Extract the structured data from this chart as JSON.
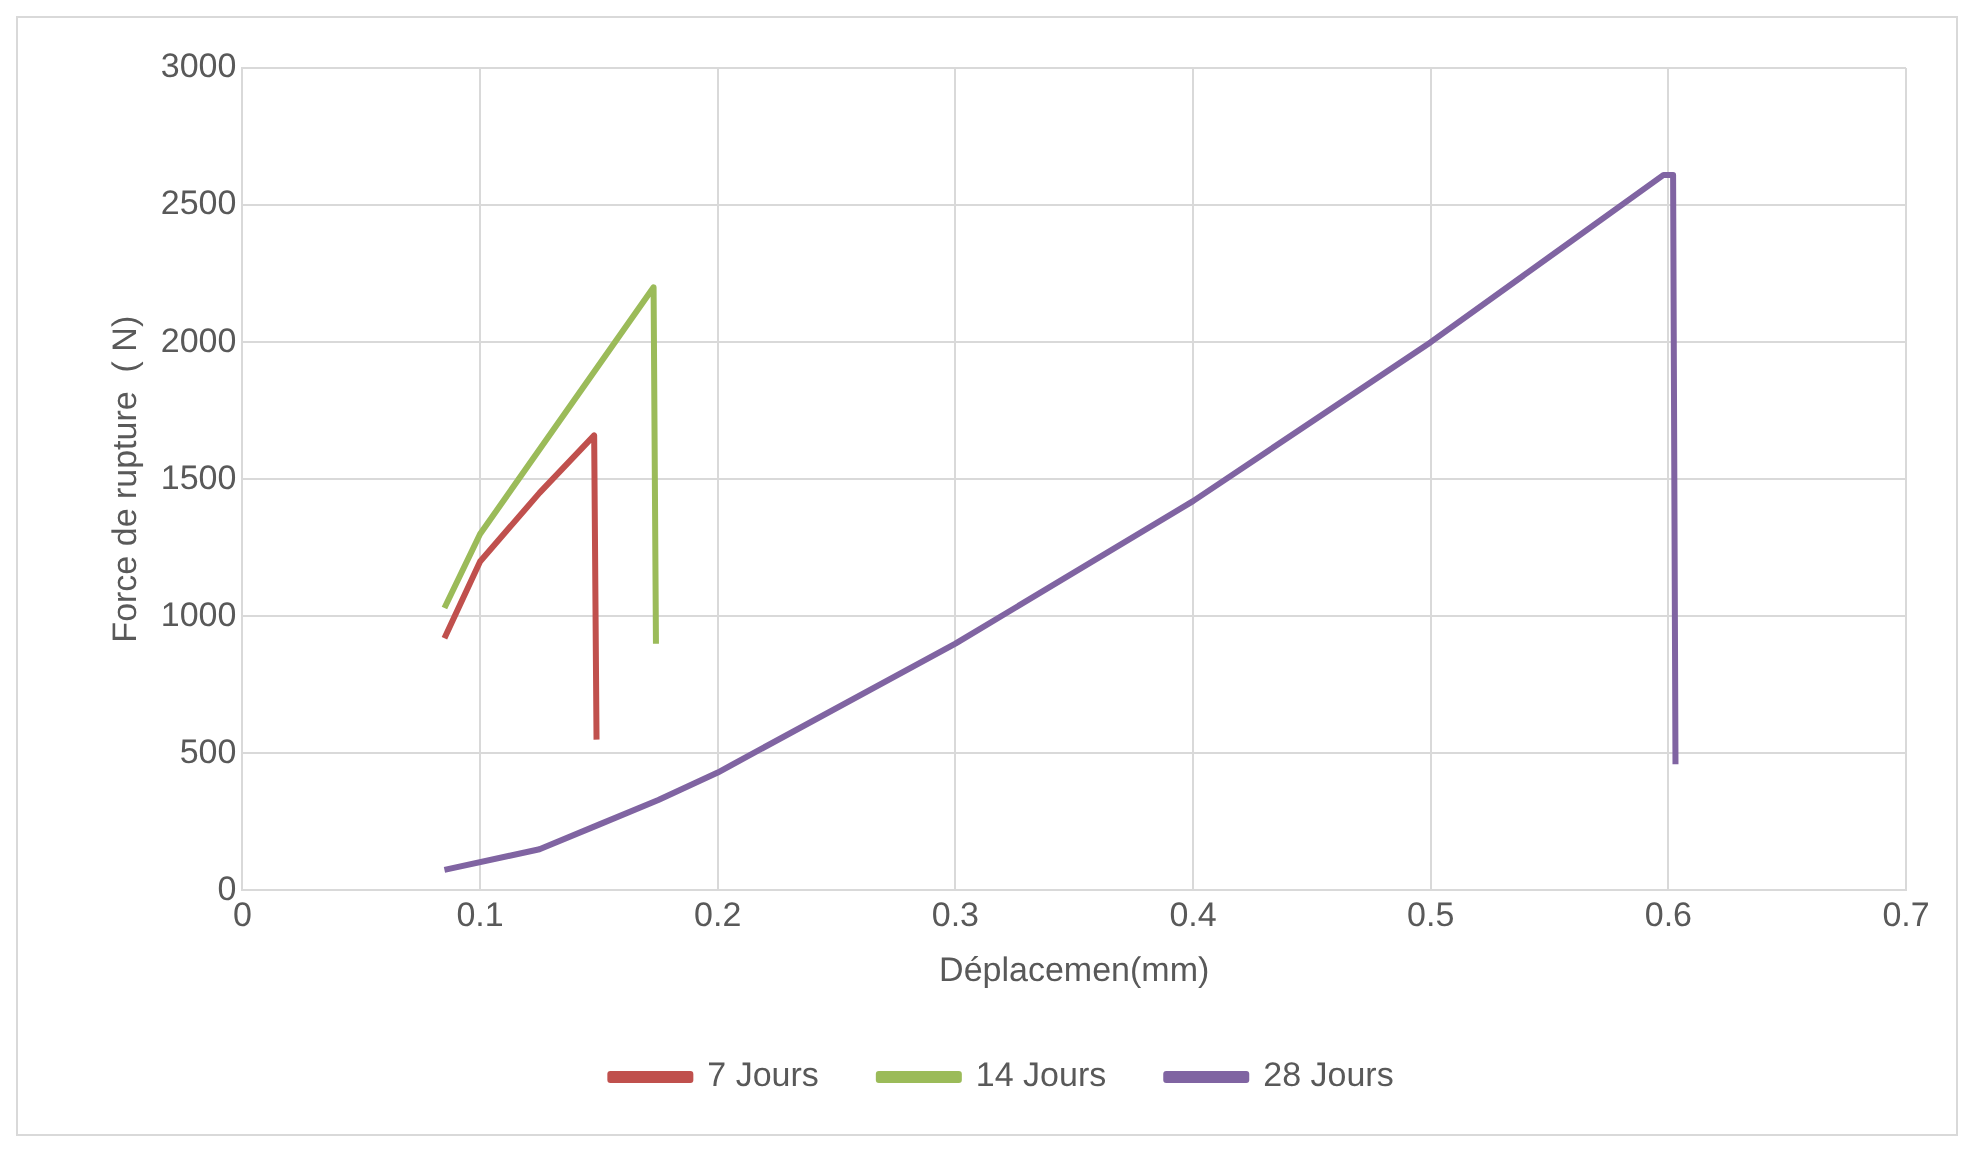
{
  "chart_data": {
    "type": "line",
    "xlabel": "Déplacemen(mm)",
    "ylabel": "Force de rupture  ( N)",
    "xlim": [
      0,
      0.7
    ],
    "xticks": [
      0,
      0.1,
      0.2,
      0.3,
      0.4,
      0.5,
      0.6,
      0.7
    ],
    "ylim": [
      0,
      3000
    ],
    "yticks": [
      0,
      500,
      1000,
      1500,
      2000,
      2500,
      3000
    ],
    "grid": true,
    "legend": "bottom",
    "marker": "none",
    "series": [
      {
        "name": "7 Jours",
        "color": "#c0504d",
        "x": [
          0.085,
          0.1,
          0.125,
          0.148,
          0.149
        ],
        "values": [
          920,
          1200,
          1450,
          1660,
          550
        ]
      },
      {
        "name": "14 Jours",
        "color": "#9bbb59",
        "x": [
          0.085,
          0.1,
          0.173,
          0.174
        ],
        "values": [
          1030,
          1300,
          2200,
          900
        ]
      },
      {
        "name": "28 Jours",
        "color": "#8064a2",
        "x": [
          0.085,
          0.125,
          0.15,
          0.175,
          0.2,
          0.3,
          0.4,
          0.5,
          0.598,
          0.602,
          0.603
        ],
        "values": [
          75,
          150,
          240,
          330,
          430,
          900,
          1420,
          2000,
          2610,
          2610,
          460
        ]
      }
    ]
  }
}
